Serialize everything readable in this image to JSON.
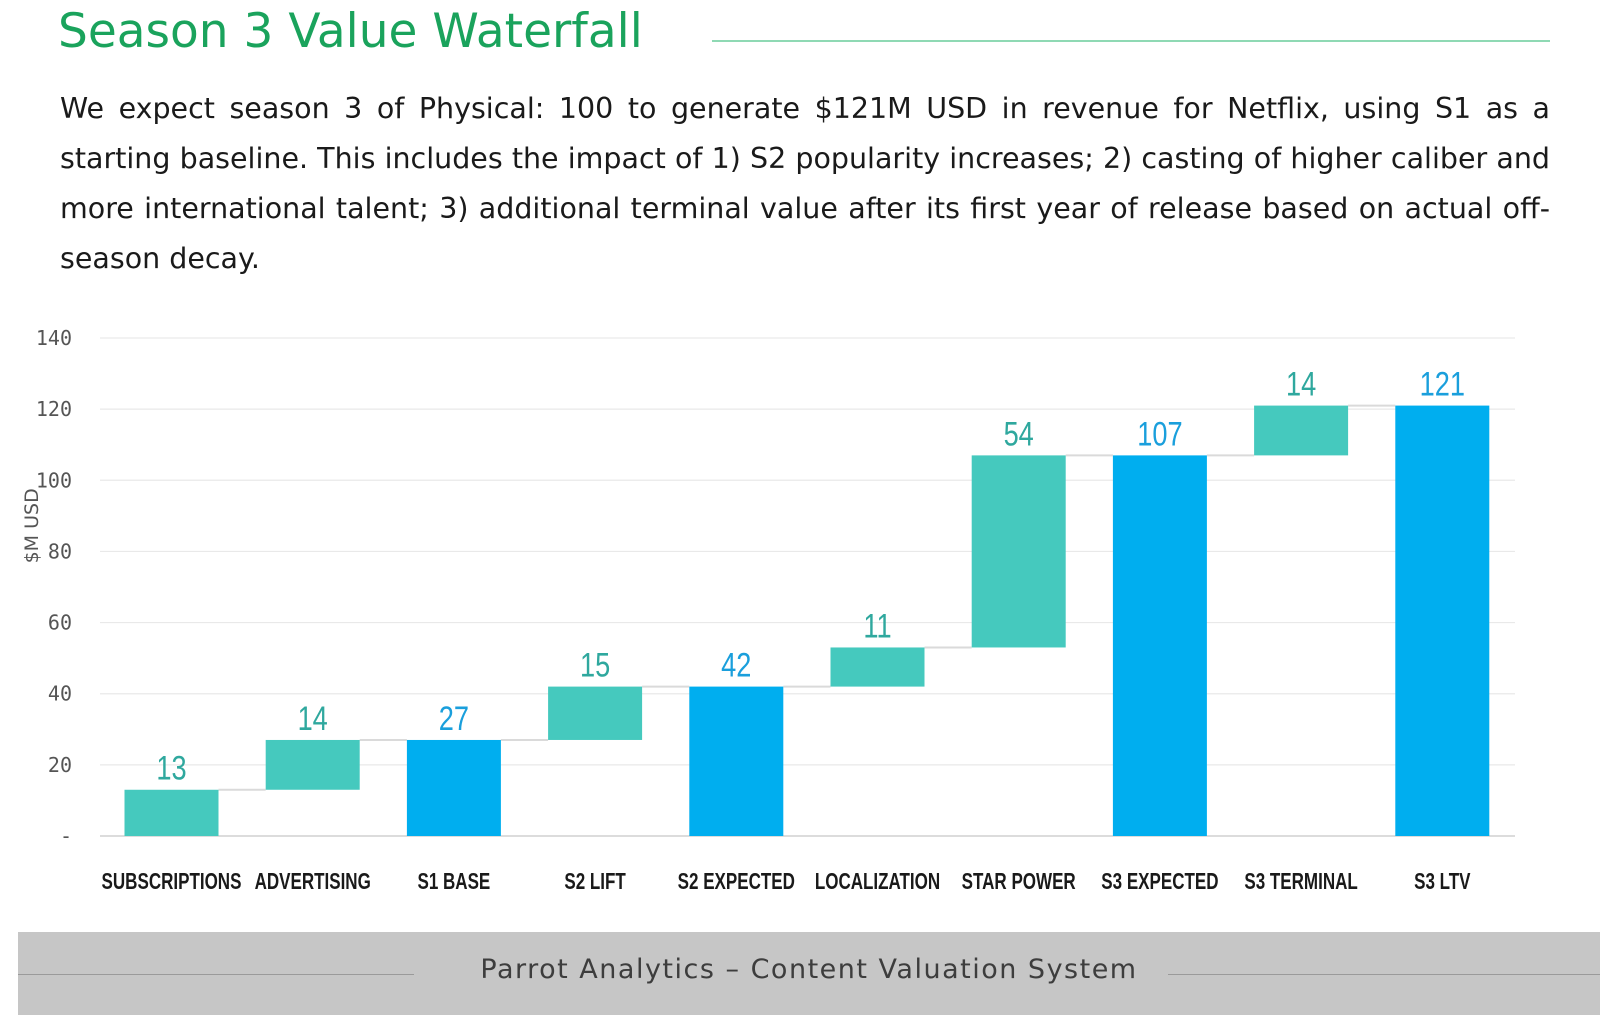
{
  "page": {
    "title": "Season 3 Value Waterfall",
    "intro": "We expect season 3 of Physical: 100 to generate $121M USD in revenue for Netflix, using S1 as a starting baseline. This includes the impact of 1) S2 popularity increases; 2) casting of higher caliber and more international talent; 3) additional terminal value after its first year of release based on actual off-season decay.",
    "footer": "Parrot Analytics – Content Valuation System"
  },
  "colors": {
    "increment": "#45c9be",
    "total": "#00aeef",
    "total_label": "#1a9fdc",
    "increment_label": "#2fa89e",
    "title": "#1aa35c"
  },
  "chart_data": {
    "type": "bar",
    "subtype": "waterfall",
    "title": "",
    "xlabel": "",
    "ylabel": "$M USD",
    "ylim": [
      0,
      140
    ],
    "yticks": [
      0,
      20,
      40,
      60,
      80,
      100,
      120,
      140
    ],
    "ytick_labels": [
      "-",
      "20",
      "40",
      "60",
      "80",
      "100",
      "120",
      "140"
    ],
    "grid": true,
    "categories": [
      "SUBSCRIPTIONS",
      "ADVERTISING",
      "S1 BASE",
      "S2 LIFT",
      "S2 EXPECTED",
      "LOCALIZATION",
      "STAR POWER",
      "S3 EXPECTED",
      "S3 TERMINAL",
      "S3 LTV"
    ],
    "bars": [
      {
        "label": "SUBSCRIPTIONS",
        "value": 13,
        "start": 0,
        "end": 13,
        "kind": "increment"
      },
      {
        "label": "ADVERTISING",
        "value": 14,
        "start": 13,
        "end": 27,
        "kind": "increment"
      },
      {
        "label": "S1 BASE",
        "value": 27,
        "start": 0,
        "end": 27,
        "kind": "total"
      },
      {
        "label": "S2 LIFT",
        "value": 15,
        "start": 27,
        "end": 42,
        "kind": "increment"
      },
      {
        "label": "S2 EXPECTED",
        "value": 42,
        "start": 0,
        "end": 42,
        "kind": "total"
      },
      {
        "label": "LOCALIZATION",
        "value": 11,
        "start": 42,
        "end": 53,
        "kind": "increment"
      },
      {
        "label": "STAR POWER",
        "value": 54,
        "start": 53,
        "end": 107,
        "kind": "increment"
      },
      {
        "label": "S3 EXPECTED",
        "value": 107,
        "start": 0,
        "end": 107,
        "kind": "total"
      },
      {
        "label": "S3 TERMINAL",
        "value": 14,
        "start": 107,
        "end": 121,
        "kind": "increment"
      },
      {
        "label": "S3 LTV",
        "value": 121,
        "start": 0,
        "end": 121,
        "kind": "total"
      }
    ]
  }
}
